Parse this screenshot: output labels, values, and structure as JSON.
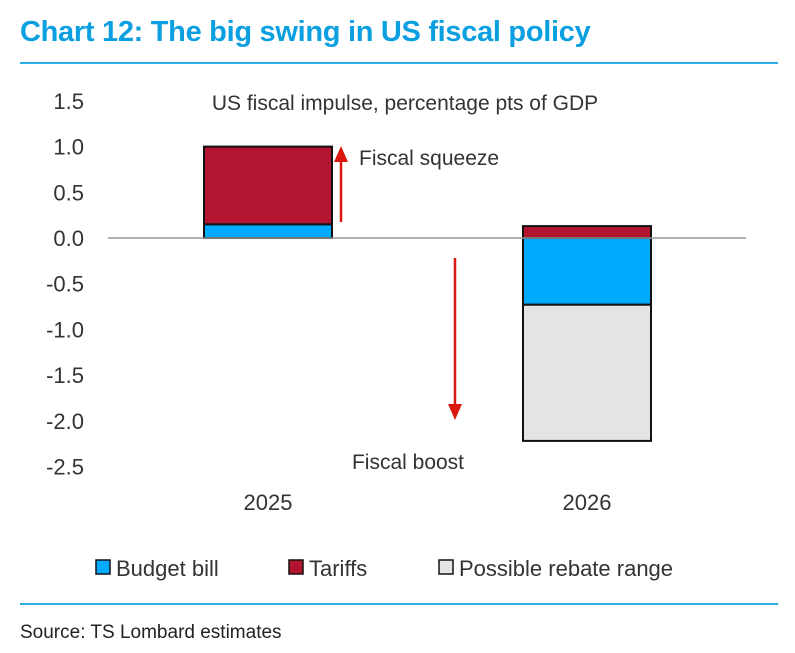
{
  "title": "Chart 12: The big swing in US fiscal policy",
  "source": "Source: TS Lombard estimates",
  "chart_data": {
    "type": "bar",
    "stacked": true,
    "title": "US fiscal impulse, percentage pts of GDP",
    "categories": [
      "2025",
      "2026"
    ],
    "series": [
      {
        "name": "Budget bill",
        "color": "#00aaff",
        "values": [
          0.15,
          -0.73
        ]
      },
      {
        "name": "Tariffs",
        "color": "#b31530",
        "values": [
          0.85,
          0.13
        ]
      },
      {
        "name": "Possible rebate range",
        "color": "#e4e4e6",
        "values": [
          0,
          -1.49
        ]
      }
    ],
    "ylim": [
      -2.5,
      1.5
    ],
    "yticks": [
      "1.5",
      "1.0",
      "0.5",
      "0.0",
      "-0.5",
      "-1.0",
      "-1.5",
      "-2.0",
      "-2.5"
    ],
    "grid": false,
    "legend": "bottom",
    "annotations": [
      {
        "text": "Fiscal squeeze",
        "arrow": "up",
        "color": "#d9190f"
      },
      {
        "text": "Fiscal boost",
        "arrow": "down",
        "color": "#d9190f"
      }
    ]
  }
}
